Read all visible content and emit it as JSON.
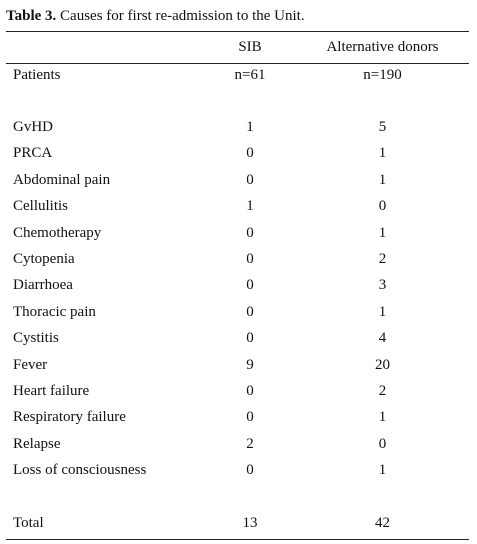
{
  "caption": {
    "label": "Table 3.",
    "text": " Causes for first re-admission to the Unit."
  },
  "table": {
    "columns": [
      "",
      "SIB",
      "Alternative donors"
    ],
    "patients_row": {
      "label": "Patients",
      "sib": "n=61",
      "alt": "n=190"
    },
    "rows": [
      {
        "label": "GvHD",
        "sib": "1",
        "alt": "5"
      },
      {
        "label": "PRCA",
        "sib": "0",
        "alt": "1"
      },
      {
        "label": "Abdominal pain",
        "sib": "0",
        "alt": "1"
      },
      {
        "label": "Cellulitis",
        "sib": "1",
        "alt": "0"
      },
      {
        "label": "Chemotherapy",
        "sib": "0",
        "alt": "1"
      },
      {
        "label": "Cytopenia",
        "sib": "0",
        "alt": "2"
      },
      {
        "label": "Diarrhoea",
        "sib": "0",
        "alt": "3"
      },
      {
        "label": "Thoracic pain",
        "sib": "0",
        "alt": "1"
      },
      {
        "label": "Cystitis",
        "sib": "0",
        "alt": "4"
      },
      {
        "label": "Fever",
        "sib": "9",
        "alt": "20"
      },
      {
        "label": "Heart failure",
        "sib": "0",
        "alt": "2"
      },
      {
        "label": "Respiratory failure",
        "sib": "0",
        "alt": "1"
      },
      {
        "label": "Relapse",
        "sib": "2",
        "alt": "0"
      },
      {
        "label": "Loss of consciousness",
        "sib": "0",
        "alt": "1"
      }
    ],
    "total_row": {
      "label": "Total",
      "sib": "13",
      "alt": "42"
    }
  }
}
